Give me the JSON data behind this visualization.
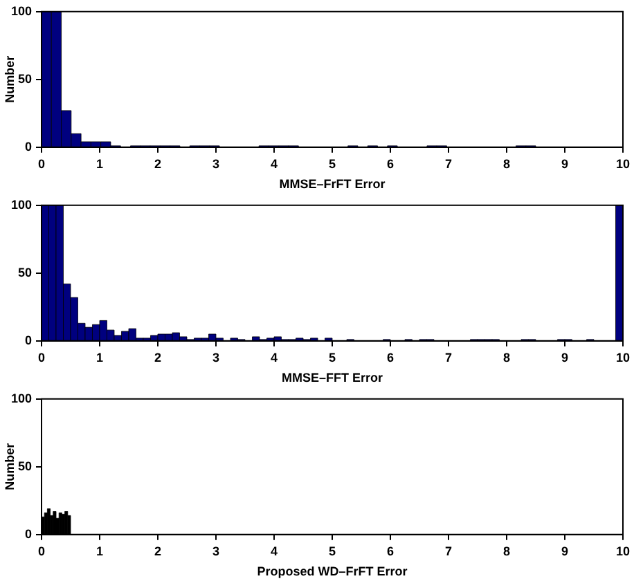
{
  "chart_data": [
    {
      "type": "histogram",
      "xlabel": "MMSE–FrFT Error",
      "ylabel": "Number",
      "color": "#00007f",
      "bins": [
        0,
        0.17,
        0.34,
        0.51,
        0.68,
        0.85,
        1.02,
        1.19,
        1.36,
        1.53,
        1.7,
        1.87,
        2.04,
        2.21,
        2.38,
        2.55,
        2.72,
        2.89,
        3.06,
        3.23,
        3.4,
        3.57,
        3.74,
        3.91,
        4.08,
        4.25,
        4.42,
        4.59,
        4.76,
        4.93,
        5.1,
        5.27,
        5.44,
        5.61,
        5.78,
        5.95,
        6.12,
        6.29,
        6.46,
        6.63,
        6.8,
        6.97,
        7.14,
        7.31,
        7.48,
        7.65,
        7.82,
        7.99,
        8.16,
        8.33,
        8.5
      ],
      "values": [
        100,
        100,
        27,
        10,
        4,
        4,
        4,
        1,
        0,
        1,
        1,
        1,
        1,
        1,
        0,
        1,
        1,
        1,
        0,
        0,
        0,
        0,
        1,
        1,
        1,
        1,
        0,
        0,
        0,
        0,
        0,
        1,
        0,
        1,
        0,
        1,
        0,
        0,
        0,
        1,
        1,
        0,
        0,
        0,
        0,
        0,
        0,
        0,
        1,
        1
      ],
      "xlim": [
        0,
        10
      ],
      "ylim": [
        0,
        100
      ],
      "xticks": [
        0,
        1,
        2,
        3,
        4,
        5,
        6,
        7,
        8,
        9,
        10
      ],
      "yticks": [
        0,
        50,
        100
      ],
      "grid": false
    },
    {
      "type": "histogram",
      "xlabel": "MMSE–FFT Error",
      "color": "#00007f",
      "bins": [
        0,
        0.125,
        0.25,
        0.375,
        0.5,
        0.625,
        0.75,
        0.875,
        1,
        1.125,
        1.25,
        1.375,
        1.5,
        1.625,
        1.75,
        1.875,
        2,
        2.125,
        2.25,
        2.375,
        2.5,
        2.625,
        2.75,
        2.875,
        3,
        3.125,
        3.25,
        3.375,
        3.5,
        3.625,
        3.75,
        3.875,
        4,
        4.125,
        4.25,
        4.375,
        4.5,
        4.625,
        4.75,
        4.875,
        5,
        5.125,
        5.25,
        5.375,
        5.5,
        5.625,
        5.75,
        5.875,
        6,
        6.125,
        6.25,
        6.375,
        6.5,
        6.625,
        6.75,
        6.875,
        7,
        7.125,
        7.25,
        7.375,
        7.5,
        7.625,
        7.75,
        7.875,
        8,
        8.125,
        8.25,
        8.375,
        8.5,
        8.625,
        8.75,
        8.875,
        9,
        9.125,
        9.25,
        9.375,
        9.5,
        9.625,
        9.75,
        9.875,
        10
      ],
      "values": [
        100,
        100,
        100,
        42,
        32,
        13,
        10,
        12,
        15,
        8,
        4,
        7,
        9,
        2,
        2,
        4,
        5,
        5,
        6,
        3,
        1,
        2,
        2,
        5,
        2,
        0,
        2,
        1,
        0,
        3,
        1,
        2,
        3,
        1,
        1,
        2,
        1,
        2,
        0,
        2,
        0,
        0,
        1,
        0,
        0,
        0,
        0,
        1,
        0,
        0,
        1,
        0,
        1,
        1,
        0,
        0,
        0,
        0,
        0,
        1,
        1,
        1,
        1,
        0,
        0,
        0,
        1,
        1,
        0,
        0,
        0,
        1,
        1,
        0,
        0,
        1,
        0,
        0,
        0,
        100
      ],
      "xlim": [
        0,
        10
      ],
      "ylim": [
        0,
        100
      ],
      "xticks": [
        0,
        1,
        2,
        3,
        4,
        5,
        6,
        7,
        8,
        9,
        10
      ],
      "yticks": [
        0,
        50,
        100
      ],
      "grid": false
    },
    {
      "type": "histogram",
      "xlabel": "Proposed WD–FrFT Error",
      "ylabel": "Number",
      "color": "#000000",
      "bins": [
        0,
        0.05,
        0.1,
        0.15,
        0.2,
        0.25,
        0.3,
        0.35,
        0.4,
        0.45,
        0.5
      ],
      "values": [
        13,
        16,
        19,
        14,
        17,
        12,
        16,
        15,
        17,
        14
      ],
      "xlim": [
        0,
        10
      ],
      "ylim": [
        0,
        100
      ],
      "xticks": [
        0,
        1,
        2,
        3,
        4,
        5,
        6,
        7,
        8,
        9,
        10
      ],
      "yticks": [
        0,
        50,
        100
      ],
      "grid": false
    }
  ]
}
